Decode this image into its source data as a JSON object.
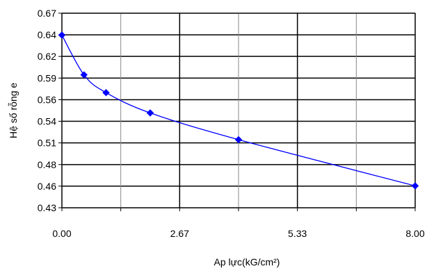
{
  "chart_data": {
    "type": "scatter",
    "title": "",
    "xlabel": "Ap lực(kG/cm²)",
    "ylabel": "Hệ số rỗng e",
    "xlim": [
      0,
      8
    ],
    "ylim": [
      0.43,
      0.67
    ],
    "x_ticks": [
      "0.00",
      "2.67",
      "5.33",
      "8.00"
    ],
    "x_tick_values": [
      0,
      2.6667,
      5.3333,
      8
    ],
    "x_minor_gridlines": [
      1.3333,
      4,
      6.6667
    ],
    "y_ticks": [
      "0.67",
      "0.64",
      "0.62",
      "0.59",
      "0.56",
      "0.54",
      "0.51",
      "0.48",
      "0.46",
      "0.43"
    ],
    "y_tick_values": [
      0.67,
      0.6433,
      0.6167,
      0.59,
      0.5633,
      0.5367,
      0.51,
      0.4833,
      0.4567,
      0.43
    ],
    "grid": true,
    "series": [
      {
        "color": "#0000ff",
        "marker": "diamond",
        "line": "smooth",
        "x": [
          0,
          0.5,
          1,
          2,
          4,
          8
        ],
        "y": [
          0.643,
          0.594,
          0.572,
          0.547,
          0.514,
          0.457
        ]
      }
    ]
  }
}
